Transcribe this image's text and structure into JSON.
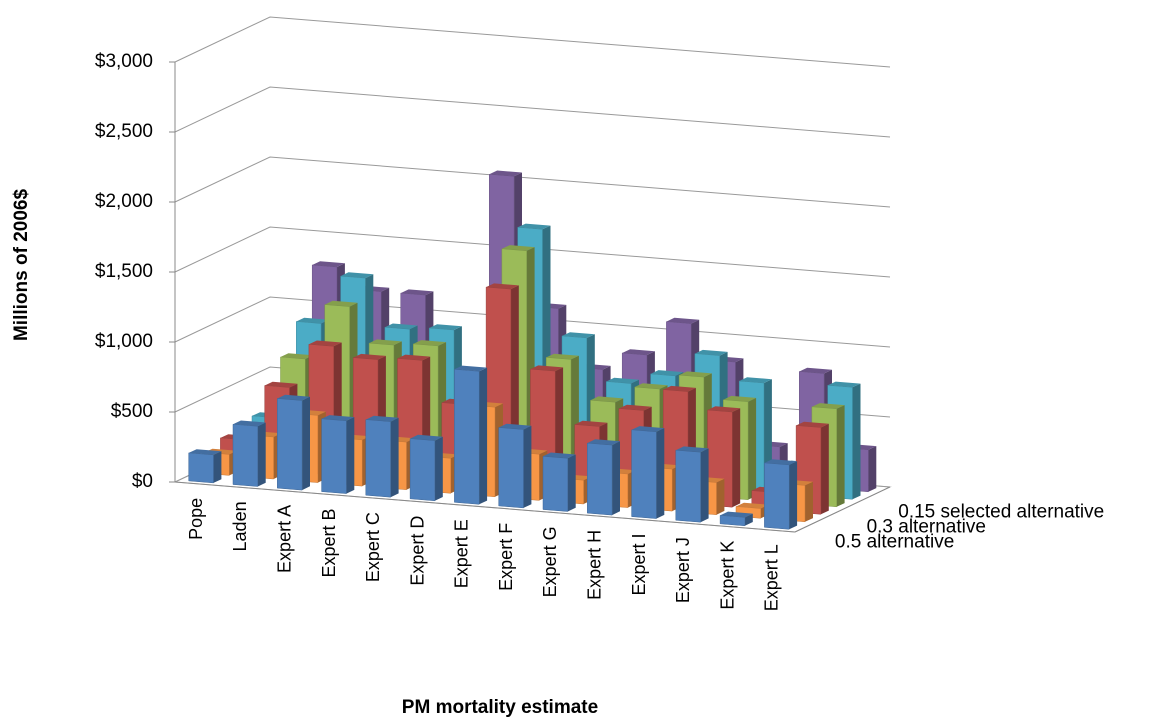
{
  "chart_data": {
    "type": "bar3d",
    "y_label": "Millions of 2006$",
    "x_label": "PM mortality estimate",
    "categories": [
      "Pope",
      "Laden",
      "Expert A",
      "Expert B",
      "Expert C",
      "Expert D",
      "Expert E",
      "Expert F",
      "Expert G",
      "Expert H",
      "Expert I",
      "Expert J",
      "Expert K",
      "Expert L"
    ],
    "series": [
      {
        "name": "0.5 alternative",
        "color": "#4f81bd",
        "values": [
          200,
          430,
          640,
          520,
          540,
          430,
          950,
          560,
          380,
          500,
          620,
          500,
          60,
          460
        ]
      },
      {
        "name": null,
        "color": "#f79646",
        "values": [
          150,
          300,
          480,
          330,
          340,
          250,
          640,
          330,
          170,
          240,
          300,
          230,
          70,
          260
        ]
      },
      {
        "name": "0.3 alternative",
        "color": "#c0504d",
        "values": [
          200,
          600,
          920,
          850,
          870,
          580,
          1430,
          870,
          500,
          640,
          800,
          680,
          130,
          620
        ]
      },
      {
        "name": null,
        "color": "#9bbb59",
        "values": [
          200,
          750,
          1150,
          900,
          920,
          450,
          1650,
          900,
          620,
          740,
          850,
          700,
          180,
          700
        ]
      },
      {
        "name": "0.15 selected alternative",
        "color": "#4bacc6",
        "values": [
          250,
          950,
          1300,
          960,
          980,
          620,
          1750,
          1000,
          700,
          780,
          950,
          780,
          210,
          800
        ]
      },
      {
        "name": null,
        "color": "#8064a2",
        "values": [
          350,
          1300,
          1150,
          1150,
          600,
          2050,
          1130,
          720,
          850,
          1100,
          850,
          270,
          820,
          300
        ]
      }
    ],
    "ylim": [
      0,
      3000
    ],
    "yticks": [
      {
        "value": 0,
        "label": "$0"
      },
      {
        "value": 500,
        "label": "$500"
      },
      {
        "value": 1000,
        "label": "$1,000"
      },
      {
        "value": 1500,
        "label": "$1,500"
      },
      {
        "value": 2000,
        "label": "$2,000"
      },
      {
        "value": 2500,
        "label": "$2,500"
      },
      {
        "value": 3000,
        "label": "$3,000"
      }
    ],
    "grid": true
  }
}
